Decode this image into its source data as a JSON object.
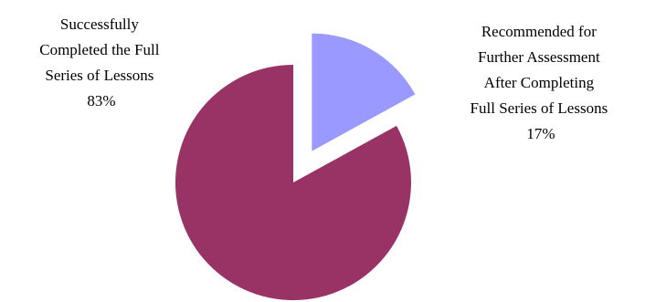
{
  "chart_data": {
    "type": "pie",
    "exploded": true,
    "slices": [
      {
        "label_lines": [
          "Successfully",
          "Completed the Full",
          "Series of Lessons"
        ],
        "value_label": "83%",
        "value": 83,
        "color": "#993366"
      },
      {
        "label_lines": [
          "Recommended for",
          "Further Assessment",
          "After Completing",
          "Full Series of Lessons"
        ],
        "value_label": "17%",
        "value": 17,
        "color": "#9999ff"
      }
    ]
  }
}
